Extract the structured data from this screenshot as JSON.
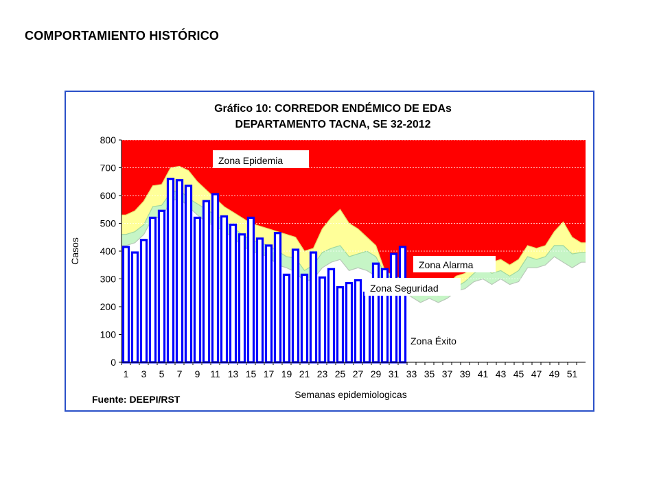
{
  "slide": {
    "title": "COMPORTAMIENTO HISTÓRICO"
  },
  "chart_data": {
    "type": "area",
    "title_line1": "Gráfico 10: CORREDOR ENDÉMICO DE EDAs",
    "title_line2": "DEPARTAMENTO TACNA,  SE 32-2012",
    "xlabel": "Semanas epidemiologicas",
    "ylabel": "Casos",
    "source": "Fuente: DEEPI/RST",
    "ylim": [
      0,
      800
    ],
    "yticks": [
      0,
      100,
      200,
      300,
      400,
      500,
      600,
      700,
      800
    ],
    "weeks": [
      1,
      2,
      3,
      4,
      5,
      6,
      7,
      8,
      9,
      10,
      11,
      12,
      13,
      14,
      15,
      16,
      17,
      18,
      19,
      20,
      21,
      22,
      23,
      24,
      25,
      26,
      27,
      28,
      29,
      30,
      31,
      32,
      33,
      34,
      35,
      36,
      37,
      38,
      39,
      40,
      41,
      42,
      43,
      44,
      45,
      46,
      47,
      48,
      49,
      50,
      51,
      52
    ],
    "xtick_labels": [
      "1",
      "3",
      "5",
      "7",
      "9",
      "11",
      "13",
      "15",
      "17",
      "19",
      "21",
      "23",
      "25",
      "27",
      "29",
      "31",
      "33",
      "35",
      "37",
      "39",
      "41",
      "43",
      "45",
      "47",
      "49",
      "51"
    ],
    "zone_labels": {
      "epidemia": "Zona Epidemia",
      "alarma": "Zona Alarma",
      "seguridad": "Zona Seguridad",
      "exito": "Zona Éxito"
    },
    "colors": {
      "epidemia": "#ff0000",
      "alarma": "#ffff99",
      "seguridad": "#c6f5c6",
      "exito": "#ffffff",
      "bars_stroke": "#0000ff",
      "frame": "#2a50c8",
      "grid": "#ffffff"
    },
    "series": [
      {
        "name": "Zona Alarma",
        "values": [
          530,
          545,
          580,
          635,
          640,
          700,
          705,
          690,
          650,
          620,
          590,
          560,
          540,
          520,
          500,
          490,
          480,
          470,
          460,
          450,
          400,
          410,
          480,
          520,
          550,
          500,
          480,
          450,
          420,
          330,
          310,
          300,
          290,
          300,
          290,
          270,
          280,
          310,
          320,
          350,
          380,
          360,
          370,
          350,
          370,
          420,
          410,
          420,
          470,
          505,
          450,
          430
        ]
      },
      {
        "name": "Zona Seguridad",
        "values": [
          460,
          470,
          495,
          560,
          565,
          610,
          620,
          590,
          570,
          550,
          530,
          510,
          485,
          460,
          440,
          430,
          420,
          400,
          380,
          375,
          330,
          350,
          395,
          410,
          420,
          380,
          390,
          400,
          380,
          320,
          300,
          290,
          270,
          260,
          250,
          240,
          250,
          270,
          290,
          320,
          340,
          320,
          330,
          310,
          330,
          380,
          370,
          380,
          420,
          420,
          390,
          395
        ]
      },
      {
        "name": "Zona Éxito",
        "values": [
          420,
          430,
          460,
          520,
          520,
          580,
          590,
          560,
          530,
          505,
          490,
          470,
          450,
          420,
          400,
          390,
          380,
          350,
          340,
          325,
          290,
          300,
          340,
          360,
          370,
          330,
          340,
          330,
          310,
          280,
          270,
          260,
          235,
          215,
          230,
          215,
          230,
          255,
          265,
          290,
          300,
          280,
          300,
          280,
          290,
          340,
          340,
          350,
          380,
          360,
          340,
          360
        ]
      },
      {
        "name": "2012",
        "values": [
          415,
          395,
          440,
          520,
          545,
          660,
          655,
          635,
          520,
          580,
          605,
          525,
          495,
          460,
          520,
          445,
          420,
          465,
          315,
          405,
          315,
          395,
          305,
          335,
          270,
          285,
          295,
          250,
          355,
          335,
          390,
          415
        ]
      }
    ]
  }
}
